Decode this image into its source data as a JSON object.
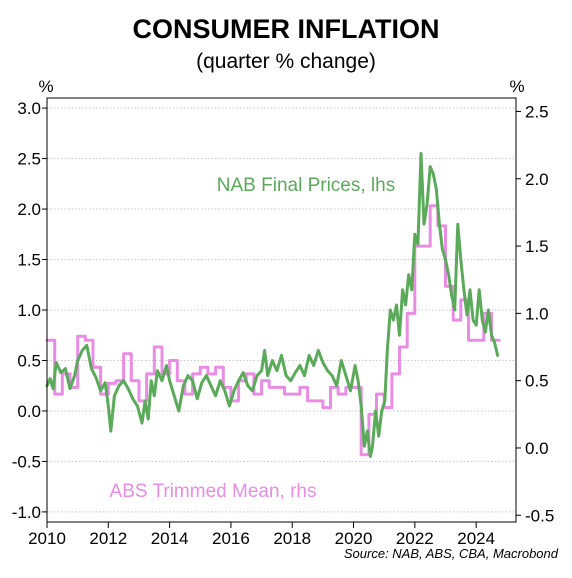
{
  "chart_data": {
    "type": "line",
    "title": "CONSUMER INFLATION",
    "subtitle": "(quarter % change)",
    "source": "Source: NAB, ABS, CBA, Macrobond",
    "left_axis": {
      "unit": "%",
      "range": [
        -1.1,
        3.1
      ],
      "ticks": [
        -1.0,
        -0.5,
        0.0,
        0.5,
        1.0,
        1.5,
        2.0,
        2.5,
        3.0
      ],
      "tick_labels": [
        "-1.0",
        "-0.5",
        "0.0",
        "0.5",
        "1.0",
        "1.5",
        "2.0",
        "2.5",
        "3.0"
      ]
    },
    "right_axis": {
      "unit": "%",
      "range": [
        -0.55,
        2.6
      ],
      "ticks": [
        -0.5,
        0.0,
        0.5,
        1.0,
        1.5,
        2.0,
        2.5
      ],
      "tick_labels": [
        "-0.5",
        "0.0",
        "0.5",
        "1.0",
        "1.5",
        "2.0",
        "2.5"
      ]
    },
    "x_axis": {
      "range": [
        2010.0,
        2025.3
      ],
      "ticks": [
        2010,
        2012,
        2014,
        2016,
        2018,
        2020,
        2022,
        2024
      ],
      "tick_labels": [
        "2010",
        "2012",
        "2014",
        "2016",
        "2018",
        "2020",
        "2022",
        "2024"
      ]
    },
    "grid": "horizontal dotted",
    "series": [
      {
        "name": "NAB Final Prices, lhs",
        "axis": "left",
        "color": "#5aaa5a",
        "points": [
          [
            2010.0,
            0.25
          ],
          [
            2010.1,
            0.32
          ],
          [
            2010.2,
            0.22
          ],
          [
            2010.3,
            0.48
          ],
          [
            2010.45,
            0.38
          ],
          [
            2010.6,
            0.42
          ],
          [
            2010.75,
            0.22
          ],
          [
            2010.9,
            0.35
          ],
          [
            2011.0,
            0.5
          ],
          [
            2011.15,
            0.6
          ],
          [
            2011.3,
            0.65
          ],
          [
            2011.45,
            0.42
          ],
          [
            2011.6,
            0.33
          ],
          [
            2011.75,
            0.2
          ],
          [
            2011.9,
            0.28
          ],
          [
            2012.0,
            0.05
          ],
          [
            2012.08,
            -0.2
          ],
          [
            2012.2,
            0.15
          ],
          [
            2012.35,
            0.25
          ],
          [
            2012.5,
            0.3
          ],
          [
            2012.65,
            0.22
          ],
          [
            2012.8,
            0.12
          ],
          [
            2012.95,
            0.05
          ],
          [
            2013.1,
            -0.12
          ],
          [
            2013.2,
            0.1
          ],
          [
            2013.3,
            -0.08
          ],
          [
            2013.4,
            0.3
          ],
          [
            2013.5,
            0.15
          ],
          [
            2013.6,
            0.4
          ],
          [
            2013.75,
            0.3
          ],
          [
            2013.9,
            0.45
          ],
          [
            2014.0,
            0.3
          ],
          [
            2014.15,
            0.15
          ],
          [
            2014.3,
            0.0
          ],
          [
            2014.45,
            0.25
          ],
          [
            2014.6,
            0.35
          ],
          [
            2014.75,
            0.3
          ],
          [
            2014.9,
            0.12
          ],
          [
            2015.05,
            0.28
          ],
          [
            2015.2,
            0.35
          ],
          [
            2015.35,
            0.25
          ],
          [
            2015.5,
            0.15
          ],
          [
            2015.65,
            0.3
          ],
          [
            2015.8,
            0.2
          ],
          [
            2015.95,
            0.05
          ],
          [
            2016.1,
            0.2
          ],
          [
            2016.25,
            0.3
          ],
          [
            2016.4,
            0.38
          ],
          [
            2016.55,
            0.25
          ],
          [
            2016.7,
            0.2
          ],
          [
            2016.85,
            0.35
          ],
          [
            2017.0,
            0.4
          ],
          [
            2017.1,
            0.6
          ],
          [
            2017.2,
            0.35
          ],
          [
            2017.35,
            0.5
          ],
          [
            2017.5,
            0.4
          ],
          [
            2017.65,
            0.55
          ],
          [
            2017.8,
            0.35
          ],
          [
            2017.95,
            0.3
          ],
          [
            2018.1,
            0.38
          ],
          [
            2018.25,
            0.45
          ],
          [
            2018.4,
            0.35
          ],
          [
            2018.55,
            0.55
          ],
          [
            2018.7,
            0.45
          ],
          [
            2018.85,
            0.6
          ],
          [
            2019.0,
            0.48
          ],
          [
            2019.15,
            0.4
          ],
          [
            2019.3,
            0.35
          ],
          [
            2019.45,
            0.25
          ],
          [
            2019.6,
            0.5
          ],
          [
            2019.75,
            0.35
          ],
          [
            2019.9,
            0.2
          ],
          [
            2020.05,
            0.45
          ],
          [
            2020.15,
            0.3
          ],
          [
            2020.25,
            0.05
          ],
          [
            2020.35,
            -0.35
          ],
          [
            2020.45,
            -0.2
          ],
          [
            2020.55,
            -0.45
          ],
          [
            2020.62,
            -0.35
          ],
          [
            2020.72,
            0.0
          ],
          [
            2020.82,
            -0.25
          ],
          [
            2020.92,
            0.0
          ],
          [
            2021.02,
            0.1
          ],
          [
            2021.1,
            0.6
          ],
          [
            2021.2,
            1.0
          ],
          [
            2021.3,
            0.9
          ],
          [
            2021.4,
            1.05
          ],
          [
            2021.5,
            0.75
          ],
          [
            2021.6,
            1.2
          ],
          [
            2021.7,
            1.05
          ],
          [
            2021.8,
            1.35
          ],
          [
            2021.9,
            1.2
          ],
          [
            2022.0,
            1.75
          ],
          [
            2022.1,
            1.65
          ],
          [
            2022.2,
            2.55
          ],
          [
            2022.3,
            1.85
          ],
          [
            2022.4,
            2.05
          ],
          [
            2022.5,
            2.42
          ],
          [
            2022.6,
            2.35
          ],
          [
            2022.7,
            2.2
          ],
          [
            2022.8,
            1.85
          ],
          [
            2022.9,
            1.6
          ],
          [
            2023.0,
            1.5
          ],
          [
            2023.1,
            1.35
          ],
          [
            2023.2,
            1.15
          ],
          [
            2023.3,
            1.0
          ],
          [
            2023.4,
            1.85
          ],
          [
            2023.5,
            1.5
          ],
          [
            2023.6,
            1.2
          ],
          [
            2023.7,
            0.95
          ],
          [
            2023.8,
            1.2
          ],
          [
            2023.9,
            0.9
          ],
          [
            2024.0,
            0.85
          ],
          [
            2024.1,
            1.2
          ],
          [
            2024.2,
            0.9
          ],
          [
            2024.3,
            0.78
          ],
          [
            2024.4,
            1.0
          ],
          [
            2024.5,
            0.75
          ],
          [
            2024.6,
            0.68
          ],
          [
            2024.7,
            0.55
          ]
        ]
      },
      {
        "name": "ABS Trimmed Mean, rhs",
        "axis": "right",
        "color": "#e98ce4",
        "points": [
          [
            2010.0,
            0.8
          ],
          [
            2010.25,
            0.8
          ],
          [
            2010.25,
            0.4
          ],
          [
            2010.5,
            0.4
          ],
          [
            2010.5,
            0.55
          ],
          [
            2010.75,
            0.55
          ],
          [
            2010.75,
            0.45
          ],
          [
            2011.0,
            0.45
          ],
          [
            2011.0,
            0.83
          ],
          [
            2011.25,
            0.83
          ],
          [
            2011.25,
            0.8
          ],
          [
            2011.5,
            0.8
          ],
          [
            2011.5,
            0.6
          ],
          [
            2011.75,
            0.6
          ],
          [
            2011.75,
            0.4
          ],
          [
            2012.0,
            0.4
          ],
          [
            2012.0,
            0.48
          ],
          [
            2012.25,
            0.48
          ],
          [
            2012.25,
            0.5
          ],
          [
            2012.5,
            0.5
          ],
          [
            2012.5,
            0.7
          ],
          [
            2012.75,
            0.7
          ],
          [
            2012.75,
            0.5
          ],
          [
            2013.0,
            0.5
          ],
          [
            2013.0,
            0.35
          ],
          [
            2013.25,
            0.35
          ],
          [
            2013.25,
            0.55
          ],
          [
            2013.5,
            0.55
          ],
          [
            2013.5,
            0.75
          ],
          [
            2013.75,
            0.75
          ],
          [
            2013.75,
            0.55
          ],
          [
            2014.0,
            0.55
          ],
          [
            2014.0,
            0.65
          ],
          [
            2014.25,
            0.65
          ],
          [
            2014.25,
            0.5
          ],
          [
            2014.5,
            0.5
          ],
          [
            2014.5,
            0.4
          ],
          [
            2014.75,
            0.4
          ],
          [
            2014.75,
            0.55
          ],
          [
            2015.0,
            0.55
          ],
          [
            2015.0,
            0.6
          ],
          [
            2015.25,
            0.6
          ],
          [
            2015.25,
            0.55
          ],
          [
            2015.5,
            0.55
          ],
          [
            2015.5,
            0.6
          ],
          [
            2015.75,
            0.6
          ],
          [
            2015.75,
            0.45
          ],
          [
            2016.0,
            0.45
          ],
          [
            2016.0,
            0.35
          ],
          [
            2016.25,
            0.35
          ],
          [
            2016.25,
            0.5
          ],
          [
            2016.5,
            0.5
          ],
          [
            2016.5,
            0.55
          ],
          [
            2016.75,
            0.55
          ],
          [
            2016.75,
            0.4
          ],
          [
            2017.0,
            0.4
          ],
          [
            2017.0,
            0.5
          ],
          [
            2017.25,
            0.5
          ],
          [
            2017.25,
            0.45
          ],
          [
            2017.5,
            0.45
          ],
          [
            2017.5,
            0.45
          ],
          [
            2017.75,
            0.45
          ],
          [
            2017.75,
            0.4
          ],
          [
            2018.0,
            0.4
          ],
          [
            2018.0,
            0.4
          ],
          [
            2018.25,
            0.4
          ],
          [
            2018.25,
            0.45
          ],
          [
            2018.5,
            0.45
          ],
          [
            2018.5,
            0.35
          ],
          [
            2018.75,
            0.35
          ],
          [
            2018.75,
            0.35
          ],
          [
            2019.0,
            0.35
          ],
          [
            2019.0,
            0.3
          ],
          [
            2019.25,
            0.3
          ],
          [
            2019.25,
            0.45
          ],
          [
            2019.5,
            0.45
          ],
          [
            2019.5,
            0.4
          ],
          [
            2019.75,
            0.4
          ],
          [
            2019.75,
            0.45
          ],
          [
            2020.0,
            0.45
          ],
          [
            2020.0,
            0.45
          ],
          [
            2020.25,
            0.45
          ],
          [
            2020.25,
            -0.05
          ],
          [
            2020.5,
            -0.05
          ],
          [
            2020.5,
            0.25
          ],
          [
            2020.75,
            0.25
          ],
          [
            2020.75,
            0.4
          ],
          [
            2021.0,
            0.4
          ],
          [
            2021.0,
            0.3
          ],
          [
            2021.25,
            0.3
          ],
          [
            2021.25,
            0.55
          ],
          [
            2021.5,
            0.55
          ],
          [
            2021.5,
            0.75
          ],
          [
            2021.75,
            0.75
          ],
          [
            2021.75,
            1.0
          ],
          [
            2022.0,
            1.0
          ],
          [
            2022.0,
            1.5
          ],
          [
            2022.25,
            1.5
          ],
          [
            2022.25,
            1.5
          ],
          [
            2022.5,
            1.5
          ],
          [
            2022.5,
            1.8
          ],
          [
            2022.75,
            1.8
          ],
          [
            2022.75,
            1.65
          ],
          [
            2023.0,
            1.65
          ],
          [
            2023.0,
            1.2
          ],
          [
            2023.25,
            1.2
          ],
          [
            2023.25,
            0.95
          ],
          [
            2023.5,
            0.95
          ],
          [
            2023.5,
            1.1
          ],
          [
            2023.75,
            1.1
          ],
          [
            2023.75,
            0.8
          ],
          [
            2024.0,
            0.8
          ],
          [
            2024.0,
            0.8
          ],
          [
            2024.25,
            0.8
          ],
          [
            2024.25,
            1.0
          ],
          [
            2024.5,
            1.0
          ],
          [
            2024.5,
            0.8
          ],
          [
            2024.75,
            0.8
          ]
        ]
      }
    ]
  }
}
